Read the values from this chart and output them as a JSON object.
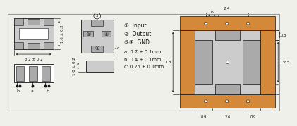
{
  "bg_color": "#f0f0eb",
  "gray": "#aaaaaa",
  "dark_gray": "#777777",
  "orange": "#d4883a",
  "light_gray": "#cccccc",
  "white": "#ffffff",
  "black": "#111111",
  "dims": [
    "a: 0.7 ± 0.1mm",
    "b: 0.4 ± 0.1mm",
    "c: 0.25 ± 0.1mm"
  ],
  "top_dims": [
    "3.2 ± 0.2",
    "1.6 ± 0.2"
  ],
  "side_dims": [
    "1.0 ± 0.2"
  ],
  "right_top_dims": [
    "2.4",
    "0.9"
  ],
  "right_bot_dims": [
    "0.9",
    "2.6",
    "0.9"
  ],
  "right_side_dims": [
    "1.8",
    "1.5",
    "0.8",
    "3.5"
  ]
}
